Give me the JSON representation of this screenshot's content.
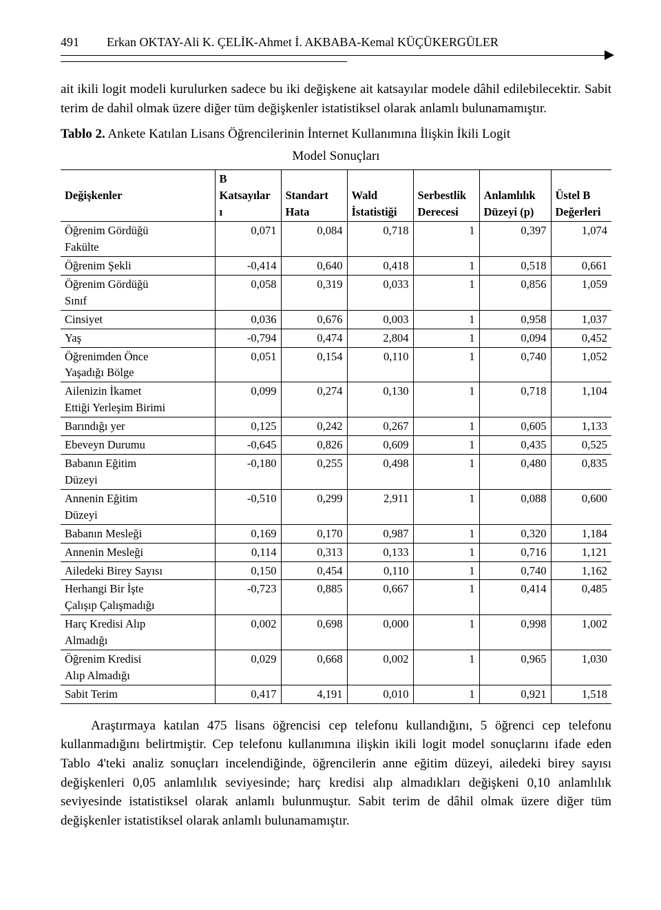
{
  "header": {
    "page_number": "491",
    "authors": "Erkan OKTAY-Ali K. ÇELİK-Ahmet İ. AKBABA-Kemal KÜÇÜKERGÜLER"
  },
  "paragraphs": {
    "p1": "ait ikili logit modeli kurulurken sadece bu iki değişkene ait katsayılar modele dâhil edilebilecektir. Sabit terim de dahil olmak üzere diğer tüm değişkenler istatistiksel olarak anlamlı bulunamamıştır.",
    "p2": "Araştırmaya katılan 475 lisans öğrencisi cep telefonu kullandığını, 5 öğrenci cep telefonu kullanmadığını belirtmiştir. Cep telefonu kullanımına ilişkin ikili logit model sonuçlarını ifade eden Tablo 4'teki analiz sonuçları incelendiğinde, öğrencilerin anne eğitim düzeyi, ailedeki birey sayısı değişkenleri 0,05 anlamlılık seviyesinde; harç kredisi alıp almadıkları değişkeni 0,10 anlamlılık seviyesinde istatistiksel olarak anlamlı bulunmuştur. Sabit terim de dâhil olmak üzere diğer tüm değişkenler istatistiksel olarak anlamlı bulunamamıştır."
  },
  "table": {
    "type": "table",
    "caption_label": "Tablo 2.",
    "caption_text_line1": " Ankete Katılan Lisans Öğrencilerinin İnternet Kullanımına İlişkin İkili Logit",
    "caption_text_line2": "Model Sonuçları",
    "columns": {
      "var": "Değişkenler",
      "b_line1": "B",
      "b_line2": "Katsayılar",
      "b_line3": "ı",
      "se_line1": "Standart",
      "se_line2": "Hata",
      "wald_line1": "Wald",
      "wald_line2": "İstatistiği",
      "df_line1": "Serbestlik",
      "df_line2": "Derecesi",
      "p_line1": "Anlamlılık",
      "p_line2": "Düzeyi (p)",
      "eb_line1": "Üstel B",
      "eb_line2": "Değerleri"
    },
    "rows": [
      {
        "var_l1": "Öğrenim Gördüğü",
        "var_l2": "Fakülte",
        "b": "0,071",
        "se": "0,084",
        "w": "0,718",
        "df": "1",
        "p": "0,397",
        "eb": "1,074"
      },
      {
        "var_l1": "Öğrenim Şekli",
        "var_l2": "",
        "b": "-0,414",
        "se": "0,640",
        "w": "0,418",
        "df": "1",
        "p": "0,518",
        "eb": "0,661"
      },
      {
        "var_l1": "Öğrenim Gördüğü",
        "var_l2": "Sınıf",
        "b": "0,058",
        "se": "0,319",
        "w": "0,033",
        "df": "1",
        "p": "0,856",
        "eb": "1,059"
      },
      {
        "var_l1": "Cinsiyet",
        "var_l2": "",
        "b": "0,036",
        "se": "0,676",
        "w": "0,003",
        "df": "1",
        "p": "0,958",
        "eb": "1,037"
      },
      {
        "var_l1": "Yaş",
        "var_l2": "",
        "b": "-0,794",
        "se": "0,474",
        "w": "2,804",
        "df": "1",
        "p": "0,094",
        "eb": "0,452"
      },
      {
        "var_l1": "Öğrenimden Önce",
        "var_l2": "Yaşadığı Bölge",
        "b": "0,051",
        "se": "0,154",
        "w": "0,110",
        "df": "1",
        "p": "0,740",
        "eb": "1,052"
      },
      {
        "var_l1": "Ailenizin İkamet",
        "var_l2": "Ettiği Yerleşim Birimi",
        "b": "0,099",
        "se": "0,274",
        "w": "0,130",
        "df": "1",
        "p": "0,718",
        "eb": "1,104"
      },
      {
        "var_l1": "Barındığı yer",
        "var_l2": "",
        "b": "0,125",
        "se": "0,242",
        "w": "0,267",
        "df": "1",
        "p": "0,605",
        "eb": "1,133"
      },
      {
        "var_l1": "Ebeveyn Durumu",
        "var_l2": "",
        "b": "-0,645",
        "se": "0,826",
        "w": "0,609",
        "df": "1",
        "p": "0,435",
        "eb": "0,525"
      },
      {
        "var_l1": "Babanın Eğitim",
        "var_l2": "Düzeyi",
        "b": "-0,180",
        "se": "0,255",
        "w": "0,498",
        "df": "1",
        "p": "0,480",
        "eb": "0,835"
      },
      {
        "var_l1": "Annenin Eğitim",
        "var_l2": "Düzeyi",
        "b": "-0,510",
        "se": "0,299",
        "w": "2,911",
        "df": "1",
        "p": "0,088",
        "eb": "0,600"
      },
      {
        "var_l1": "Babanın Mesleği",
        "var_l2": "",
        "b": "0,169",
        "se": "0,170",
        "w": "0,987",
        "df": "1",
        "p": "0,320",
        "eb": "1,184"
      },
      {
        "var_l1": "Annenin Mesleği",
        "var_l2": "",
        "b": "0,114",
        "se": "0,313",
        "w": "0,133",
        "df": "1",
        "p": "0,716",
        "eb": "1,121"
      },
      {
        "var_l1": "Ailedeki Birey Sayısı",
        "var_l2": "",
        "b": "0,150",
        "se": "0,454",
        "w": "0,110",
        "df": "1",
        "p": "0,740",
        "eb": "1,162"
      },
      {
        "var_l1": "Herhangi Bir İşte",
        "var_l2": "Çalışıp Çalışmadığı",
        "b": "-0,723",
        "se": "0,885",
        "w": "0,667",
        "df": "1",
        "p": "0,414",
        "eb": "0,485"
      },
      {
        "var_l1": "Harç Kredisi Alıp",
        "var_l2": "Almadığı",
        "b": "0,002",
        "se": "0,698",
        "w": "0,000",
        "df": "1",
        "p": "0,998",
        "eb": "1,002"
      },
      {
        "var_l1": "Öğrenim Kredisi",
        "var_l2": "Alıp Almadığı",
        "b": "0,029",
        "se": "0,668",
        "w": "0,002",
        "df": "1",
        "p": "0,965",
        "eb": "1,030"
      },
      {
        "var_l1": "Sabit Terim",
        "var_l2": "",
        "b": "0,417",
        "se": "4,191",
        "w": "0,010",
        "df": "1",
        "p": "0,921",
        "eb": "1,518"
      }
    ],
    "border_color": "#000000",
    "font_size_pt": 12,
    "col_widths_pct": [
      28,
      12,
      12,
      12,
      12,
      13,
      11
    ]
  },
  "colors": {
    "text": "#000000",
    "background": "#ffffff",
    "rule": "#000000"
  }
}
